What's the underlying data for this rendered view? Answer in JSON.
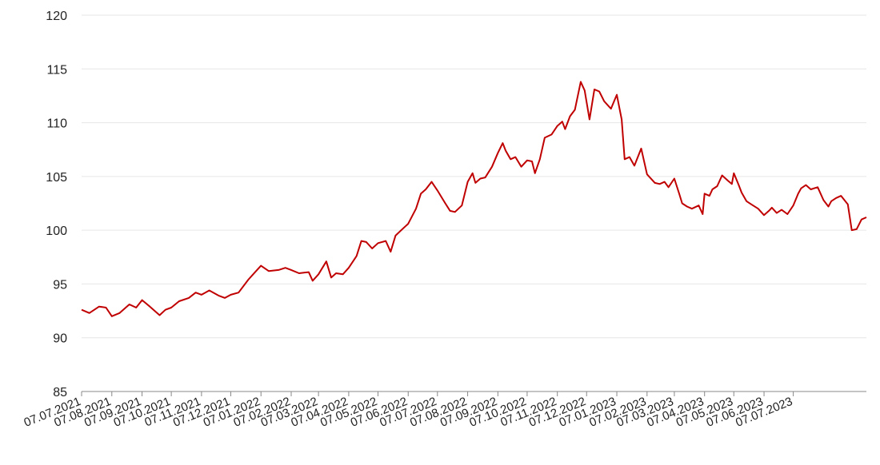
{
  "chart_data": {
    "type": "line",
    "title": "",
    "xlabel": "",
    "ylabel": "",
    "ylim": [
      85,
      120
    ],
    "yticks": [
      "85",
      "90",
      "95",
      "100",
      "105",
      "110",
      "115",
      "120"
    ],
    "grid": true,
    "legend": "none",
    "x_tick_labels": [
      "07.07.2021",
      "07.08.2021",
      "07.09.2021",
      "07.10.2021",
      "07.11.2021",
      "07.12.2021",
      "07.01.2022",
      "07.02.2022",
      "07.03.2022",
      "07.04.2022",
      "07.05.2022",
      "07.06.2022",
      "07.07.2022",
      "07.08.2022",
      "07.09.2022",
      "07.10.2022",
      "07.11.2022",
      "07.12.2022",
      "07.01.2023",
      "07.02.2023",
      "07.03.2023",
      "07.04.2023",
      "07.05.2023",
      "07.06.2023",
      "07.07.2023"
    ],
    "series": [
      {
        "color": "#c00000",
        "points": [
          [
            "07.07.2021",
            92.6
          ],
          [
            "15.07.2021",
            92.3
          ],
          [
            "25.07.2021",
            92.9
          ],
          [
            "01.08.2021",
            92.8
          ],
          [
            "07.08.2021",
            92.0
          ],
          [
            "15.08.2021",
            92.3
          ],
          [
            "25.08.2021",
            93.1
          ],
          [
            "01.09.2021",
            92.8
          ],
          [
            "07.09.2021",
            93.5
          ],
          [
            "15.09.2021",
            92.9
          ],
          [
            "25.09.2021",
            92.1
          ],
          [
            "01.10.2021",
            92.6
          ],
          [
            "07.10.2021",
            92.8
          ],
          [
            "15.10.2021",
            93.4
          ],
          [
            "25.10.2021",
            93.7
          ],
          [
            "01.11.2021",
            94.2
          ],
          [
            "07.11.2021",
            94.0
          ],
          [
            "15.11.2021",
            94.4
          ],
          [
            "25.11.2021",
            93.9
          ],
          [
            "01.12.2021",
            93.7
          ],
          [
            "07.12.2021",
            94.0
          ],
          [
            "15.12.2021",
            94.2
          ],
          [
            "25.12.2021",
            95.4
          ],
          [
            "01.01.2022",
            96.1
          ],
          [
            "07.01.2022",
            96.7
          ],
          [
            "15.01.2022",
            96.2
          ],
          [
            "25.01.2022",
            96.3
          ],
          [
            "01.02.2022",
            96.5
          ],
          [
            "07.02.2022",
            96.3
          ],
          [
            "15.02.2022",
            96.0
          ],
          [
            "25.02.2022",
            96.1
          ],
          [
            "01.03.2022",
            95.3
          ],
          [
            "07.03.2022",
            95.9
          ],
          [
            "15.03.2022",
            97.1
          ],
          [
            "20.03.2022",
            95.6
          ],
          [
            "25.03.2022",
            96.0
          ],
          [
            "01.04.2022",
            95.9
          ],
          [
            "07.04.2022",
            96.5
          ],
          [
            "15.04.2022",
            97.6
          ],
          [
            "20.04.2022",
            99.0
          ],
          [
            "25.04.2022",
            98.9
          ],
          [
            "01.05.2022",
            98.3
          ],
          [
            "07.05.2022",
            98.8
          ],
          [
            "15.05.2022",
            99.0
          ],
          [
            "20.05.2022",
            98.0
          ],
          [
            "25.05.2022",
            99.5
          ],
          [
            "01.06.2022",
            100.1
          ],
          [
            "07.06.2022",
            100.6
          ],
          [
            "15.06.2022",
            102.0
          ],
          [
            "20.06.2022",
            103.4
          ],
          [
            "25.06.2022",
            103.8
          ],
          [
            "01.07.2022",
            104.5
          ],
          [
            "07.07.2022",
            103.7
          ],
          [
            "15.07.2022",
            102.5
          ],
          [
            "20.07.2022",
            101.8
          ],
          [
            "25.07.2022",
            101.7
          ],
          [
            "01.08.2022",
            102.3
          ],
          [
            "07.08.2022",
            104.5
          ],
          [
            "12.08.2022",
            105.3
          ],
          [
            "15.08.2022",
            104.4
          ],
          [
            "20.08.2022",
            104.8
          ],
          [
            "25.08.2022",
            104.9
          ],
          [
            "01.09.2022",
            105.9
          ],
          [
            "07.09.2022",
            107.2
          ],
          [
            "12.09.2022",
            108.1
          ],
          [
            "15.09.2022",
            107.4
          ],
          [
            "20.09.2022",
            106.6
          ],
          [
            "25.09.2022",
            106.8
          ],
          [
            "01.10.2022",
            105.9
          ],
          [
            "07.10.2022",
            106.5
          ],
          [
            "12.10.2022",
            106.4
          ],
          [
            "15.10.2022",
            105.3
          ],
          [
            "20.10.2022",
            106.6
          ],
          [
            "25.10.2022",
            108.6
          ],
          [
            "01.11.2022",
            108.9
          ],
          [
            "07.11.2022",
            109.7
          ],
          [
            "12.11.2022",
            110.1
          ],
          [
            "15.11.2022",
            109.4
          ],
          [
            "20.11.2022",
            110.6
          ],
          [
            "25.11.2022",
            111.2
          ],
          [
            "01.12.2022",
            113.8
          ],
          [
            "05.12.2022",
            113.0
          ],
          [
            "10.12.2022",
            110.3
          ],
          [
            "15.12.2022",
            113.1
          ],
          [
            "20.12.2022",
            112.9
          ],
          [
            "25.12.2022",
            112.0
          ],
          [
            "01.01.2023",
            111.3
          ],
          [
            "07.01.2023",
            112.6
          ],
          [
            "12.01.2023",
            110.3
          ],
          [
            "15.01.2023",
            106.6
          ],
          [
            "20.01.2023",
            106.8
          ],
          [
            "25.01.2023",
            106.0
          ],
          [
            "01.02.2023",
            107.6
          ],
          [
            "07.02.2023",
            105.2
          ],
          [
            "15.02.2023",
            104.4
          ],
          [
            "20.02.2023",
            104.3
          ],
          [
            "25.02.2023",
            104.5
          ],
          [
            "01.03.2023",
            104.0
          ],
          [
            "07.03.2023",
            104.8
          ],
          [
            "12.03.2023",
            103.4
          ],
          [
            "15.03.2023",
            102.5
          ],
          [
            "20.03.2023",
            102.2
          ],
          [
            "25.03.2023",
            102.0
          ],
          [
            "01.04.2023",
            102.3
          ],
          [
            "05.04.2023",
            101.5
          ],
          [
            "07.04.2023",
            103.4
          ],
          [
            "12.04.2023",
            103.2
          ],
          [
            "15.04.2023",
            103.8
          ],
          [
            "20.04.2023",
            104.1
          ],
          [
            "25.04.2023",
            105.1
          ],
          [
            "01.05.2023",
            104.6
          ],
          [
            "05.05.2023",
            104.3
          ],
          [
            "07.05.2023",
            105.3
          ],
          [
            "12.05.2023",
            104.2
          ],
          [
            "15.05.2023",
            103.5
          ],
          [
            "20.05.2023",
            102.7
          ],
          [
            "25.05.2023",
            102.4
          ],
          [
            "01.06.2023",
            102.0
          ],
          [
            "07.06.2023",
            101.4
          ],
          [
            "12.06.2023",
            101.8
          ],
          [
            "15.06.2023",
            102.1
          ],
          [
            "20.06.2023",
            101.6
          ],
          [
            "25.06.2023",
            101.9
          ],
          [
            "01.07.2023",
            101.5
          ],
          [
            "07.07.2023",
            102.3
          ],
          [
            "12.07.2023",
            103.4
          ],
          [
            "15.07.2023",
            103.9
          ],
          [
            "20.07.2023",
            104.2
          ],
          [
            "25.07.2023",
            103.8
          ],
          [
            "01.08.2023",
            104.0
          ],
          [
            "07.08.2023",
            102.8
          ],
          [
            "12.08.2023",
            102.2
          ],
          [
            "15.08.2023",
            102.7
          ],
          [
            "20.08.2023",
            103.0
          ],
          [
            "25.08.2023",
            103.2
          ],
          [
            "01.09.2023",
            102.4
          ],
          [
            "05.09.2023",
            100.0
          ],
          [
            "10.09.2023",
            100.1
          ],
          [
            "15.09.2023",
            101.0
          ],
          [
            "20.09.2023",
            101.2
          ]
        ]
      }
    ]
  }
}
